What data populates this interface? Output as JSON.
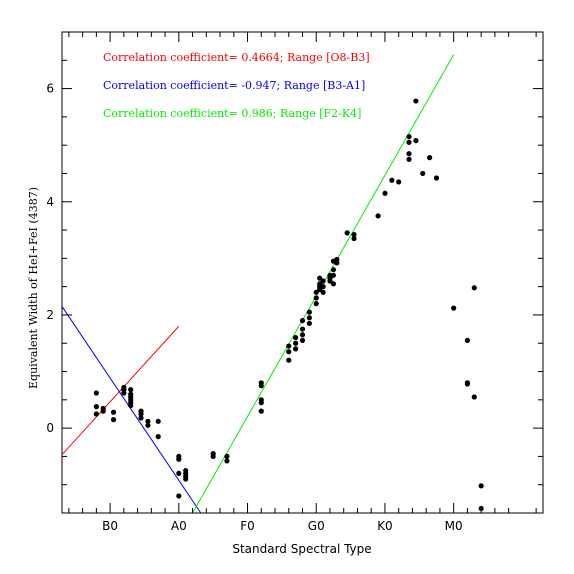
{
  "chart_data": {
    "type": "scatter",
    "xlabel": "Standard Spectral Type",
    "ylabel": "Equivalent Width of HeI+FeI (4387)",
    "xlim": [
      -0.7,
      6.3
    ],
    "ylim": [
      -1.5,
      7
    ],
    "x_ticks": [
      {
        "value": 0,
        "label": "B0"
      },
      {
        "value": 1,
        "label": "A0"
      },
      {
        "value": 2,
        "label": "F0"
      },
      {
        "value": 3,
        "label": "G0"
      },
      {
        "value": 4,
        "label": "K0"
      },
      {
        "value": 5,
        "label": "M0"
      }
    ],
    "y_ticks": [
      0,
      2,
      4,
      6
    ],
    "point_color": "#000000",
    "points": [
      [
        -0.2,
        0.62
      ],
      [
        -0.2,
        0.38
      ],
      [
        -0.2,
        0.25
      ],
      [
        -0.1,
        0.35
      ],
      [
        -0.1,
        0.3
      ],
      [
        0.05,
        0.28
      ],
      [
        0.05,
        0.15
      ],
      [
        0.2,
        0.72
      ],
      [
        0.2,
        0.68
      ],
      [
        0.2,
        0.62
      ],
      [
        0.3,
        0.68
      ],
      [
        0.3,
        0.6
      ],
      [
        0.3,
        0.55
      ],
      [
        0.3,
        0.5
      ],
      [
        0.3,
        0.45
      ],
      [
        0.3,
        0.4
      ],
      [
        0.45,
        0.3
      ],
      [
        0.45,
        0.25
      ],
      [
        0.45,
        0.18
      ],
      [
        0.55,
        0.12
      ],
      [
        0.55,
        0.05
      ],
      [
        0.7,
        0.12
      ],
      [
        0.7,
        -0.15
      ],
      [
        1.0,
        -0.5
      ],
      [
        1.0,
        -0.55
      ],
      [
        1.0,
        -0.8
      ],
      [
        1.0,
        -1.2
      ],
      [
        1.1,
        -0.75
      ],
      [
        1.1,
        -0.8
      ],
      [
        1.1,
        -0.85
      ],
      [
        1.1,
        -0.9
      ],
      [
        1.5,
        -0.45
      ],
      [
        1.5,
        -0.5
      ],
      [
        1.7,
        -0.5
      ],
      [
        1.7,
        -0.58
      ],
      [
        2.2,
        0.8
      ],
      [
        2.2,
        0.75
      ],
      [
        2.2,
        0.5
      ],
      [
        2.2,
        0.45
      ],
      [
        2.2,
        0.3
      ],
      [
        2.6,
        1.45
      ],
      [
        2.6,
        1.35
      ],
      [
        2.6,
        1.2
      ],
      [
        2.7,
        1.6
      ],
      [
        2.7,
        1.5
      ],
      [
        2.7,
        1.4
      ],
      [
        2.8,
        1.9
      ],
      [
        2.8,
        1.75
      ],
      [
        2.8,
        1.65
      ],
      [
        2.8,
        1.55
      ],
      [
        2.9,
        2.05
      ],
      [
        2.9,
        1.95
      ],
      [
        2.9,
        1.85
      ],
      [
        3.0,
        2.4
      ],
      [
        3.0,
        2.3
      ],
      [
        3.0,
        2.2
      ],
      [
        3.05,
        2.65
      ],
      [
        3.05,
        2.55
      ],
      [
        3.05,
        2.5
      ],
      [
        3.05,
        2.45
      ],
      [
        3.1,
        2.6
      ],
      [
        3.1,
        2.5
      ],
      [
        3.1,
        2.4
      ],
      [
        3.2,
        2.7
      ],
      [
        3.2,
        2.65
      ],
      [
        3.2,
        2.6
      ],
      [
        3.25,
        2.8
      ],
      [
        3.25,
        2.7
      ],
      [
        3.25,
        2.55
      ],
      [
        3.25,
        2.95
      ],
      [
        3.3,
        2.98
      ],
      [
        3.3,
        2.92
      ],
      [
        3.45,
        3.45
      ],
      [
        3.55,
        3.42
      ],
      [
        3.55,
        3.35
      ],
      [
        3.9,
        3.75
      ],
      [
        4.0,
        4.15
      ],
      [
        4.1,
        4.38
      ],
      [
        4.2,
        4.35
      ],
      [
        4.35,
        5.15
      ],
      [
        4.35,
        5.05
      ],
      [
        4.35,
        4.85
      ],
      [
        4.35,
        4.75
      ],
      [
        4.45,
        5.78
      ],
      [
        4.45,
        5.08
      ],
      [
        4.55,
        4.5
      ],
      [
        4.65,
        4.78
      ],
      [
        4.75,
        4.42
      ],
      [
        5.0,
        2.12
      ],
      [
        5.2,
        1.55
      ],
      [
        5.2,
        0.8
      ],
      [
        5.2,
        0.78
      ],
      [
        5.3,
        2.48
      ],
      [
        5.3,
        0.55
      ],
      [
        5.4,
        -1.02
      ],
      [
        5.4,
        -1.42
      ]
    ],
    "fit_lines": [
      {
        "name": "Correlation coefficient= 0.4664; Range [O8-B3]",
        "color": "#ff0000",
        "x": [
          -0.7,
          1.0
        ],
        "y": [
          -0.47,
          1.8
        ]
      },
      {
        "name": "Correlation coefficient= -0.947; Range [B3-A1]",
        "color": "#0000ff",
        "x": [
          -0.7,
          1.32
        ],
        "y": [
          2.15,
          -1.5
        ]
      },
      {
        "name": "Correlation coefficient= 0.986; Range [F2-K4]",
        "color": "#00ee00",
        "x": [
          1.2,
          5.0
        ],
        "y": [
          -1.5,
          6.6
        ]
      }
    ]
  }
}
